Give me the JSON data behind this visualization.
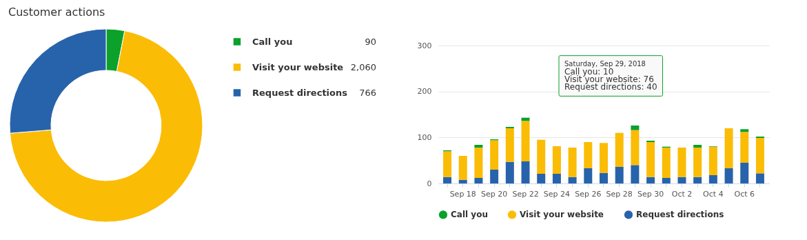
{
  "chart_data": [
    {
      "type": "donut",
      "title": "Customer actions",
      "categories": [
        "Call you",
        "Visit your website",
        "Request directions"
      ],
      "values": [
        90,
        2060,
        766
      ],
      "colors": [
        "#0ba12b",
        "#fbbc05",
        "#2763ab"
      ],
      "legend": "right",
      "value_labels": [
        "90",
        "2,060",
        "766"
      ]
    },
    {
      "type": "bar",
      "stacked": true,
      "categories": [
        null,
        "Sep 18",
        null,
        "Sep 20",
        null,
        "Sep 22",
        null,
        "Sep 24",
        null,
        "Sep 26",
        null,
        "Sep 28",
        null,
        "Sep 30",
        null,
        "Oct 2",
        null,
        "Oct 4",
        null,
        "Oct 6",
        null
      ],
      "series": [
        {
          "name": "Request directions",
          "color": "#2763ab",
          "values": [
            14,
            8,
            12,
            30,
            47,
            48,
            21,
            21,
            14,
            33,
            23,
            36,
            40,
            14,
            12,
            14,
            14,
            18,
            33,
            45,
            22
          ]
        },
        {
          "name": "Visit your website",
          "color": "#fbbc05",
          "values": [
            56,
            52,
            66,
            64,
            73,
            88,
            74,
            60,
            64,
            57,
            65,
            74,
            76,
            76,
            66,
            64,
            64,
            62,
            87,
            67,
            77
          ]
        },
        {
          "name": "Call you",
          "color": "#0ba12b",
          "values": [
            2,
            0,
            6,
            2,
            3,
            7,
            0,
            0,
            0,
            0,
            0,
            0,
            10,
            3,
            2,
            0,
            6,
            1,
            0,
            6,
            3
          ]
        }
      ],
      "ylim": [
        0,
        300
      ],
      "yticks": [
        0,
        100,
        200,
        300
      ],
      "grid": "y",
      "legend": "bottom",
      "annotations": [
        "Saturday, Sep 29, 2018",
        "Call you: 10",
        "Visit your website: 76",
        "Request directions: 40"
      ]
    }
  ]
}
